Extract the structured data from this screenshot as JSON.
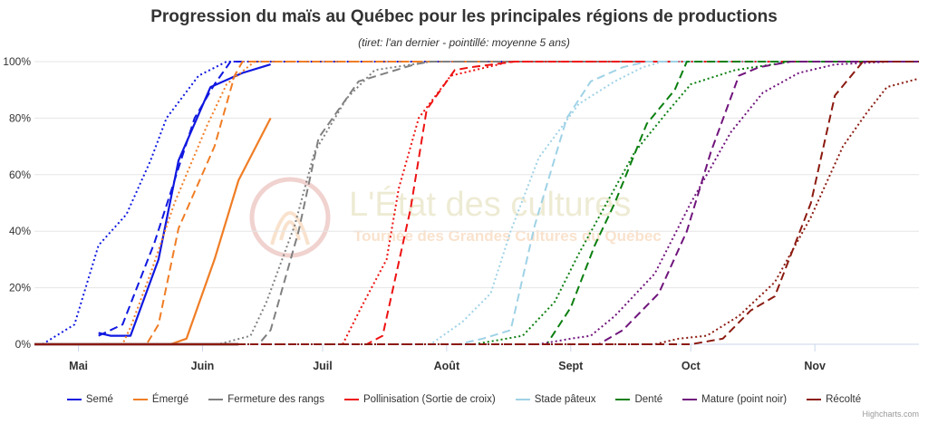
{
  "title": "Progression du maïs au Québec pour les principales régions de productions",
  "subtitle": "(tiret: l'an dernier - pointillé: moyenne 5 ans)",
  "credit": "Highcharts.com",
  "watermark": {
    "line1": "L'État des cultures",
    "line2": "Tournée des Grandes Cultures du Québec"
  },
  "chart_data": {
    "type": "line",
    "x_type": "date",
    "xlim": [
      "04-20",
      "11-27"
    ],
    "ylim": [
      0,
      100
    ],
    "y_tick_labels": [
      "0%",
      "20%",
      "40%",
      "60%",
      "80%",
      "100%"
    ],
    "x_tick_labels": [
      {
        "date": "05-01",
        "label": "Mai"
      },
      {
        "date": "06-01",
        "label": "Juin"
      },
      {
        "date": "07-01",
        "label": "Juil"
      },
      {
        "date": "08-01",
        "label": "Août"
      },
      {
        "date": "09-01",
        "label": "Sept"
      },
      {
        "date": "10-01",
        "label": "Oct"
      },
      {
        "date": "11-01",
        "label": "Nov"
      }
    ],
    "grid": true,
    "legend_position": "bottom",
    "series": [
      {
        "name": "Semé",
        "color": "#1018e0",
        "current": [
          [
            "05-06",
            4
          ],
          [
            "05-09",
            3
          ],
          [
            "05-14",
            3
          ],
          [
            "05-21",
            30
          ],
          [
            "05-26",
            65
          ],
          [
            "06-03",
            91
          ],
          [
            "06-11",
            96
          ],
          [
            "06-18",
            99
          ]
        ],
        "last_year": [
          [
            "05-06",
            3
          ],
          [
            "05-12",
            7
          ],
          [
            "05-20",
            36
          ],
          [
            "05-30",
            80
          ],
          [
            "06-04",
            92
          ],
          [
            "06-06",
            96
          ],
          [
            "06-08",
            100
          ],
          [
            "06-18",
            100
          ],
          [
            "11-27",
            100
          ]
        ],
        "average": [
          [
            "04-22",
            0
          ],
          [
            "04-30",
            7
          ],
          [
            "05-06",
            35
          ],
          [
            "05-13",
            46
          ],
          [
            "05-19",
            65
          ],
          [
            "05-23",
            80
          ],
          [
            "05-31",
            95
          ],
          [
            "06-07",
            100
          ],
          [
            "06-14",
            100
          ],
          [
            "11-27",
            100
          ]
        ]
      },
      {
        "name": "Émergé",
        "color": "#f07d25",
        "current": [
          [
            "04-20",
            0
          ],
          [
            "05-24",
            0
          ],
          [
            "05-28",
            2
          ],
          [
            "06-04",
            30
          ],
          [
            "06-10",
            58
          ],
          [
            "06-18",
            80
          ]
        ],
        "last_year": [
          [
            "04-20",
            0
          ],
          [
            "05-18",
            0
          ],
          [
            "05-21",
            7
          ],
          [
            "05-26",
            41
          ],
          [
            "06-04",
            70
          ],
          [
            "06-09",
            95
          ],
          [
            "06-11",
            100
          ],
          [
            "11-27",
            100
          ]
        ],
        "average": [
          [
            "04-20",
            0
          ],
          [
            "05-12",
            0
          ],
          [
            "05-14",
            6
          ],
          [
            "05-19",
            25
          ],
          [
            "05-25",
            50
          ],
          [
            "06-02",
            77
          ],
          [
            "06-07",
            92
          ],
          [
            "06-14",
            100
          ],
          [
            "11-27",
            100
          ]
        ]
      },
      {
        "name": "Fermeture des rangs",
        "color": "#808080",
        "current": [
          [
            "04-20",
            0
          ],
          [
            "06-10",
            0
          ]
        ],
        "last_year": [
          [
            "04-20",
            0
          ],
          [
            "06-15",
            0
          ],
          [
            "06-18",
            5
          ],
          [
            "06-25",
            40
          ],
          [
            "06-30",
            73
          ],
          [
            "07-10",
            93
          ],
          [
            "07-24",
            99
          ],
          [
            "07-28",
            100
          ],
          [
            "11-27",
            100
          ]
        ],
        "average": [
          [
            "04-20",
            0
          ],
          [
            "06-05",
            0
          ],
          [
            "06-13",
            3
          ],
          [
            "06-17",
            15
          ],
          [
            "06-24",
            42
          ],
          [
            "06-29",
            68
          ],
          [
            "07-07",
            87
          ],
          [
            "07-14",
            97
          ],
          [
            "07-28",
            100
          ],
          [
            "11-27",
            100
          ]
        ]
      },
      {
        "name": "Pollinisation (Sortie de croix)",
        "color": "#ee1111",
        "current": [
          [
            "04-20",
            0
          ],
          [
            "06-10",
            0
          ]
        ],
        "last_year": [
          [
            "04-20",
            0
          ],
          [
            "07-12",
            0
          ],
          [
            "07-16",
            3
          ],
          [
            "07-23",
            48
          ],
          [
            "07-27",
            83
          ],
          [
            "08-03",
            97
          ],
          [
            "08-07",
            98
          ],
          [
            "08-18",
            100
          ],
          [
            "11-27",
            100
          ]
        ],
        "average": [
          [
            "04-20",
            0
          ],
          [
            "07-06",
            0
          ],
          [
            "07-11",
            14
          ],
          [
            "07-17",
            30
          ],
          [
            "07-20",
            55
          ],
          [
            "07-25",
            80
          ],
          [
            "08-02",
            95
          ],
          [
            "08-17",
            100
          ],
          [
            "11-27",
            100
          ]
        ]
      },
      {
        "name": "Stade pâteux",
        "color": "#9fd2e6",
        "current": [
          [
            "04-20",
            0
          ],
          [
            "06-10",
            0
          ]
        ],
        "last_year": [
          [
            "04-20",
            0
          ],
          [
            "08-04",
            0
          ],
          [
            "08-10",
            2
          ],
          [
            "08-17",
            5
          ],
          [
            "08-23",
            42
          ],
          [
            "08-31",
            80
          ],
          [
            "09-06",
            93
          ],
          [
            "09-14",
            98
          ],
          [
            "09-20",
            100
          ],
          [
            "11-27",
            100
          ]
        ],
        "average": [
          [
            "04-20",
            0
          ],
          [
            "07-28",
            0
          ],
          [
            "08-05",
            8
          ],
          [
            "08-12",
            18
          ],
          [
            "08-17",
            40
          ],
          [
            "08-24",
            66
          ],
          [
            "09-03",
            85
          ],
          [
            "09-12",
            93
          ],
          [
            "09-19",
            98
          ],
          [
            "09-24",
            100
          ],
          [
            "11-27",
            100
          ]
        ]
      },
      {
        "name": "Denté",
        "color": "#0b7f10",
        "current": [
          [
            "04-20",
            0
          ],
          [
            "06-10",
            0
          ]
        ],
        "last_year": [
          [
            "04-20",
            0
          ],
          [
            "08-26",
            0
          ],
          [
            "09-01",
            13
          ],
          [
            "09-07",
            35
          ],
          [
            "09-12",
            50
          ],
          [
            "09-20",
            78
          ],
          [
            "09-27",
            90
          ],
          [
            "09-30",
            100
          ],
          [
            "11-27",
            100
          ]
        ],
        "average": [
          [
            "04-20",
            0
          ],
          [
            "08-08",
            0
          ],
          [
            "08-20",
            3
          ],
          [
            "08-28",
            15
          ],
          [
            "09-03",
            32
          ],
          [
            "09-10",
            50
          ],
          [
            "09-17",
            68
          ],
          [
            "09-25",
            82
          ],
          [
            "10-01",
            92
          ],
          [
            "10-12",
            97
          ],
          [
            "10-26",
            100
          ],
          [
            "11-27",
            100
          ]
        ]
      },
      {
        "name": "Mature (point noir)",
        "color": "#70147c",
        "current": [
          [
            "04-20",
            0
          ],
          [
            "06-10",
            0
          ]
        ],
        "last_year": [
          [
            "04-20",
            0
          ],
          [
            "09-08",
            0
          ],
          [
            "09-14",
            5
          ],
          [
            "09-23",
            18
          ],
          [
            "09-30",
            40
          ],
          [
            "10-06",
            68
          ],
          [
            "10-13",
            95
          ],
          [
            "10-18",
            98
          ],
          [
            "10-26",
            100
          ],
          [
            "11-27",
            100
          ]
        ],
        "average": [
          [
            "04-20",
            0
          ],
          [
            "08-24",
            0
          ],
          [
            "09-01",
            2
          ],
          [
            "09-06",
            3
          ],
          [
            "09-12",
            10
          ],
          [
            "09-22",
            25
          ],
          [
            "10-01",
            50
          ],
          [
            "10-11",
            75
          ],
          [
            "10-19",
            89
          ],
          [
            "10-28",
            96
          ],
          [
            "11-06",
            99
          ],
          [
            "11-20",
            100
          ],
          [
            "11-27",
            100
          ]
        ]
      },
      {
        "name": "Récolté",
        "color": "#8b1a10",
        "current": [
          [
            "04-20",
            0
          ],
          [
            "06-10",
            0
          ]
        ],
        "last_year": [
          [
            "04-20",
            0
          ],
          [
            "10-01",
            0
          ],
          [
            "10-09",
            2
          ],
          [
            "10-16",
            12
          ],
          [
            "10-22",
            17
          ],
          [
            "10-31",
            50
          ],
          [
            "11-06",
            88
          ],
          [
            "11-13",
            100
          ],
          [
            "11-27",
            100
          ]
        ],
        "average": [
          [
            "04-20",
            0
          ],
          [
            "09-22",
            0
          ],
          [
            "09-28",
            2
          ],
          [
            "10-05",
            3
          ],
          [
            "10-13",
            10
          ],
          [
            "10-22",
            22
          ],
          [
            "10-31",
            45
          ],
          [
            "11-08",
            70
          ],
          [
            "11-14",
            82
          ],
          [
            "11-19",
            91
          ],
          [
            "11-27",
            94
          ]
        ]
      }
    ]
  }
}
